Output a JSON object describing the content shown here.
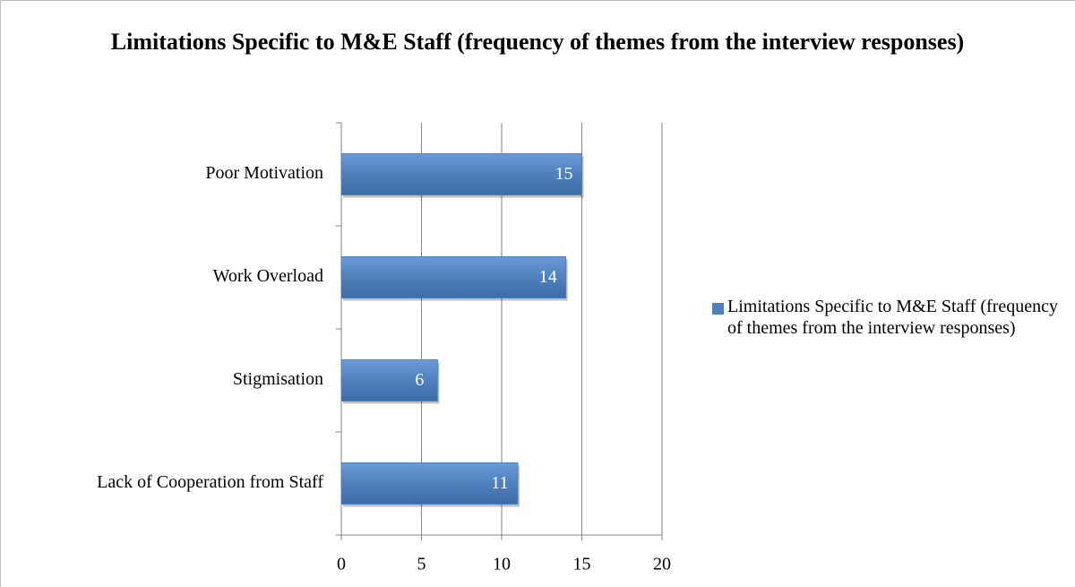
{
  "chart_data": {
    "type": "bar",
    "orientation": "horizontal",
    "title": "Limitations Specific to M&E Staff (frequency of themes from the interview responses)",
    "categories": [
      "Poor Motivation",
      "Work Overload",
      "Stigmisation",
      "Lack of Cooperation from Staff"
    ],
    "series": [
      {
        "name": "Limitations Specific to M&E Staff (frequency of themes from the interview responses)",
        "color": "#4f81bd",
        "values": [
          15,
          14,
          6,
          11
        ]
      }
    ],
    "xlim": [
      0,
      20
    ],
    "xticks": [
      0,
      5,
      10,
      15,
      20
    ],
    "grid": true,
    "legend": "right"
  }
}
